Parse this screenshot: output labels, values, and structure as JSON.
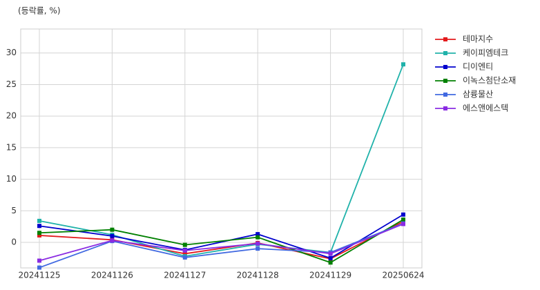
{
  "chart_data": {
    "type": "line",
    "y_label": "(등락률, %)",
    "categories": [
      "20241125",
      "20241126",
      "20241127",
      "20241128",
      "20241129",
      "20250624"
    ],
    "series": [
      {
        "name": "테마지수",
        "color": "#e31a1c",
        "values": [
          1.1,
          0.4,
          -1.8,
          -0.1,
          -2.6,
          3.3
        ]
      },
      {
        "name": "케이피엠테크",
        "color": "#20b2aa",
        "values": [
          3.4,
          1.2,
          -2.2,
          -0.3,
          -1.6,
          28.2
        ]
      },
      {
        "name": "디이엔티",
        "color": "#0000cd",
        "values": [
          2.6,
          1.0,
          -1.2,
          1.3,
          -2.5,
          4.4
        ]
      },
      {
        "name": "이녹스첨단소재",
        "color": "#008000",
        "values": [
          1.5,
          2.0,
          -0.4,
          0.8,
          -3.2,
          3.6
        ]
      },
      {
        "name": "삼륭물산",
        "color": "#4169e1",
        "values": [
          -4.0,
          0.2,
          -2.4,
          -1.0,
          -1.6,
          3.0
        ]
      },
      {
        "name": "에스앤에스텍",
        "color": "#8a2be2",
        "values": [
          -2.9,
          0.3,
          -1.3,
          -0.2,
          -1.8,
          2.9
        ]
      }
    ],
    "ylim": [
      -4.05,
      33.8
    ],
    "yticks": [
      0,
      5,
      10,
      15,
      20,
      25,
      30
    ],
    "grid": true,
    "legend": "outside-right"
  }
}
